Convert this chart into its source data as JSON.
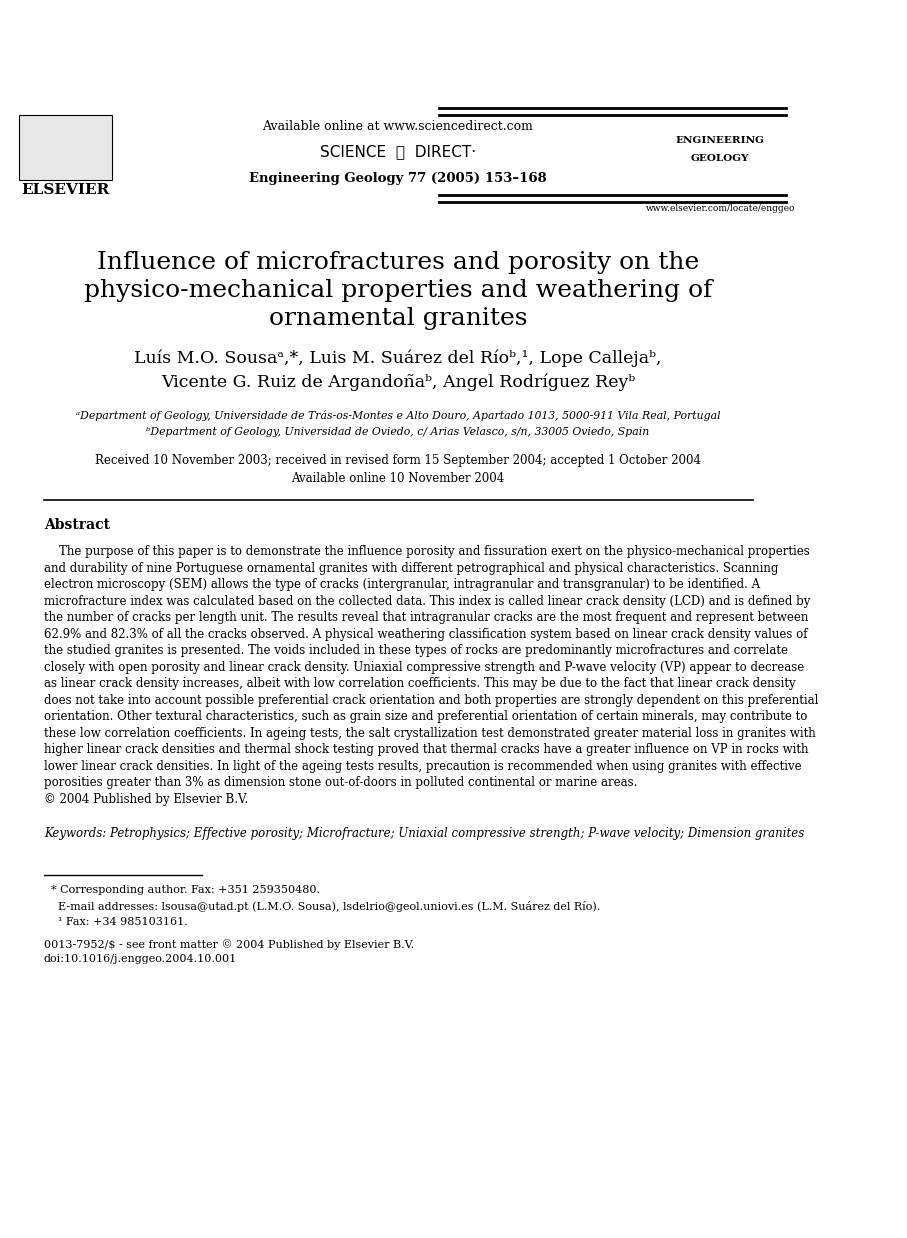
{
  "bg_color": "#ffffff",
  "available_online_text": "Available online at www.sciencedirect.com",
  "journal_text": "Engineering Geology 77 (2005) 153–168",
  "elsevier_text": "ELSEVIER",
  "eng_geo_line1": "ENGINEERING",
  "eng_geo_line2": "GEOLOGY",
  "www_text": "www.elsevier.com/locate/enggeo",
  "title_line1": "Influence of microfractures and porosity on the",
  "title_line2": "physico-mechanical properties and weathering of",
  "title_line3": "ornamental granites",
  "authors_line1": "Luís M.O. Sousaᵃ,*, Luis M. Suárez del Ríoᵇ,¹, Lope Callejaᵇ,",
  "authors_line2": "Vicente G. Ruiz de Argandoñaᵇ, Angel Rodríguez Reyᵇ",
  "affil_a": "ᵃDepartment of Geology, Universidade de Trás-os-Montes e Alto Douro, Apartado 1013, 5000-911 Vila Real, Portugal",
  "affil_b": "ᵇDepartment of Geology, Universidad de Oviedo, c/ Arias Velasco, s/n, 33005 Oviedo, Spain",
  "received_text": "Received 10 November 2003; received in revised form 15 September 2004; accepted 1 October 2004",
  "available_text": "Available online 10 November 2004",
  "abstract_label": "Abstract",
  "abstract_lines": [
    "    The purpose of this paper is to demonstrate the influence porosity and fissuration exert on the physico-mechanical properties",
    "and durability of nine Portuguese ornamental granites with different petrographical and physical characteristics. Scanning",
    "electron microscopy (SEM) allows the type of cracks (intergranular, intragranular and transgranular) to be identified. A",
    "microfracture index was calculated based on the collected data. This index is called linear crack density (LCD) and is defined by",
    "the number of cracks per length unit. The results reveal that intragranular cracks are the most frequent and represent between",
    "62.9% and 82.3% of all the cracks observed. A physical weathering classification system based on linear crack density values of",
    "the studied granites is presented. The voids included in these types of rocks are predominantly microfractures and correlate",
    "closely with open porosity and linear crack density. Uniaxial compressive strength and P-wave velocity (VP) appear to decrease",
    "as linear crack density increases, albeit with low correlation coefficients. This may be due to the fact that linear crack density",
    "does not take into account possible preferential crack orientation and both properties are strongly dependent on this preferential",
    "orientation. Other textural characteristics, such as grain size and preferential orientation of certain minerals, may contribute to",
    "these low correlation coefficients. In ageing tests, the salt crystallization test demonstrated greater material loss in granites with",
    "higher linear crack densities and thermal shock testing proved that thermal cracks have a greater influence on VP in rocks with",
    "lower linear crack densities. In light of the ageing tests results, precaution is recommended when using granites with effective",
    "porosities greater than 3% as dimension stone out-of-doors in polluted continental or marine areas.",
    "© 2004 Published by Elsevier B.V."
  ],
  "keywords_text": "Keywords: Petrophysics; Effective porosity; Microfracture; Uniaxial compressive strength; P-wave velocity; Dimension granites",
  "footnote1": "  * Corresponding author. Fax: +351 259350480.",
  "footnote2": "    E-mail addresses: lsousa@utad.pt (L.M.O. Sousa), lsdelrio@geol.uniovi.es (L.M. Suárez del Río).",
  "footnote3": "    ¹ Fax: +34 985103161.",
  "issn_text": "0013-7952/$ - see front matter © 2004 Published by Elsevier B.V.",
  "doi_text": "doi:10.1016/j.enggeo.2004.10.001"
}
